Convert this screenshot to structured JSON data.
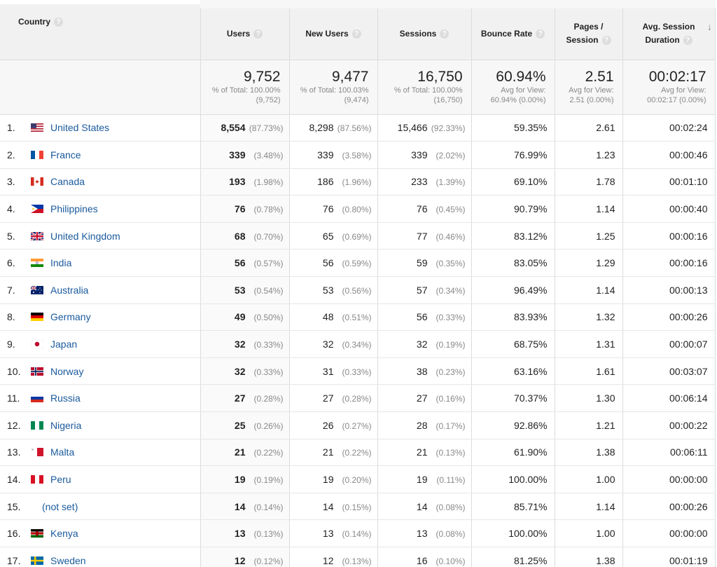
{
  "headers": {
    "country": "Country",
    "users": "Users",
    "new_users": "New Users",
    "sessions": "Sessions",
    "bounce_rate": "Bounce Rate",
    "pages_session_1": "Pages /",
    "pages_session_2": "Session",
    "avg_duration_1": "Avg. Session",
    "avg_duration_2": "Duration"
  },
  "totals": {
    "users": {
      "value": "9,752",
      "sub1": "% of Total: 100.00%",
      "sub2": "(9,752)"
    },
    "new_users": {
      "value": "9,477",
      "sub1": "% of Total: 100.03%",
      "sub2": "(9,474)"
    },
    "sessions": {
      "value": "16,750",
      "sub1": "% of Total: 100.00%",
      "sub2": "(16,750)"
    },
    "bounce_rate": {
      "value": "60.94%",
      "sub1": "Avg for View:",
      "sub2": "60.94% (0.00%)"
    },
    "pages_session": {
      "value": "2.51",
      "sub1": "Avg for View:",
      "sub2": "2.51 (0.00%)"
    },
    "avg_duration": {
      "value": "00:02:17",
      "sub1": "Avg for View:",
      "sub2": "00:02:17 (0.00%)"
    }
  },
  "rows": [
    {
      "rank": "1.",
      "flag": "us",
      "country": "United States",
      "users": "8,554",
      "users_pct": "(87.73%)",
      "new_users": "8,298",
      "new_users_pct": "(87.56%)",
      "sessions": "15,466",
      "sessions_pct": "(92.33%)",
      "bounce": "59.35%",
      "pages": "2.61",
      "duration": "00:02:24"
    },
    {
      "rank": "2.",
      "flag": "fr",
      "country": "France",
      "users": "339",
      "users_pct": "(3.48%)",
      "new_users": "339",
      "new_users_pct": "(3.58%)",
      "sessions": "339",
      "sessions_pct": "(2.02%)",
      "bounce": "76.99%",
      "pages": "1.23",
      "duration": "00:00:46"
    },
    {
      "rank": "3.",
      "flag": "ca",
      "country": "Canada",
      "users": "193",
      "users_pct": "(1.98%)",
      "new_users": "186",
      "new_users_pct": "(1.96%)",
      "sessions": "233",
      "sessions_pct": "(1.39%)",
      "bounce": "69.10%",
      "pages": "1.78",
      "duration": "00:01:10"
    },
    {
      "rank": "4.",
      "flag": "ph",
      "country": "Philippines",
      "users": "76",
      "users_pct": "(0.78%)",
      "new_users": "76",
      "new_users_pct": "(0.80%)",
      "sessions": "76",
      "sessions_pct": "(0.45%)",
      "bounce": "90.79%",
      "pages": "1.14",
      "duration": "00:00:40"
    },
    {
      "rank": "5.",
      "flag": "gb",
      "country": "United Kingdom",
      "users": "68",
      "users_pct": "(0.70%)",
      "new_users": "65",
      "new_users_pct": "(0.69%)",
      "sessions": "77",
      "sessions_pct": "(0.46%)",
      "bounce": "83.12%",
      "pages": "1.25",
      "duration": "00:00:16"
    },
    {
      "rank": "6.",
      "flag": "in",
      "country": "India",
      "users": "56",
      "users_pct": "(0.57%)",
      "new_users": "56",
      "new_users_pct": "(0.59%)",
      "sessions": "59",
      "sessions_pct": "(0.35%)",
      "bounce": "83.05%",
      "pages": "1.29",
      "duration": "00:00:16"
    },
    {
      "rank": "7.",
      "flag": "au",
      "country": "Australia",
      "users": "53",
      "users_pct": "(0.54%)",
      "new_users": "53",
      "new_users_pct": "(0.56%)",
      "sessions": "57",
      "sessions_pct": "(0.34%)",
      "bounce": "96.49%",
      "pages": "1.14",
      "duration": "00:00:13"
    },
    {
      "rank": "8.",
      "flag": "de",
      "country": "Germany",
      "users": "49",
      "users_pct": "(0.50%)",
      "new_users": "48",
      "new_users_pct": "(0.51%)",
      "sessions": "56",
      "sessions_pct": "(0.33%)",
      "bounce": "83.93%",
      "pages": "1.32",
      "duration": "00:00:26"
    },
    {
      "rank": "9.",
      "flag": "jp",
      "country": "Japan",
      "users": "32",
      "users_pct": "(0.33%)",
      "new_users": "32",
      "new_users_pct": "(0.34%)",
      "sessions": "32",
      "sessions_pct": "(0.19%)",
      "bounce": "68.75%",
      "pages": "1.31",
      "duration": "00:00:07"
    },
    {
      "rank": "10.",
      "flag": "no",
      "country": "Norway",
      "users": "32",
      "users_pct": "(0.33%)",
      "new_users": "31",
      "new_users_pct": "(0.33%)",
      "sessions": "38",
      "sessions_pct": "(0.23%)",
      "bounce": "63.16%",
      "pages": "1.61",
      "duration": "00:03:07"
    },
    {
      "rank": "11.",
      "flag": "ru",
      "country": "Russia",
      "users": "27",
      "users_pct": "(0.28%)",
      "new_users": "27",
      "new_users_pct": "(0.28%)",
      "sessions": "27",
      "sessions_pct": "(0.16%)",
      "bounce": "70.37%",
      "pages": "1.30",
      "duration": "00:06:14"
    },
    {
      "rank": "12.",
      "flag": "ng",
      "country": "Nigeria",
      "users": "25",
      "users_pct": "(0.26%)",
      "new_users": "26",
      "new_users_pct": "(0.27%)",
      "sessions": "28",
      "sessions_pct": "(0.17%)",
      "bounce": "92.86%",
      "pages": "1.21",
      "duration": "00:00:22"
    },
    {
      "rank": "13.",
      "flag": "mt",
      "country": "Malta",
      "users": "21",
      "users_pct": "(0.22%)",
      "new_users": "21",
      "new_users_pct": "(0.22%)",
      "sessions": "21",
      "sessions_pct": "(0.13%)",
      "bounce": "61.90%",
      "pages": "1.38",
      "duration": "00:06:11"
    },
    {
      "rank": "14.",
      "flag": "pe",
      "country": "Peru",
      "users": "19",
      "users_pct": "(0.19%)",
      "new_users": "19",
      "new_users_pct": "(0.20%)",
      "sessions": "19",
      "sessions_pct": "(0.11%)",
      "bounce": "100.00%",
      "pages": "1.00",
      "duration": "00:00:00"
    },
    {
      "rank": "15.",
      "flag": "",
      "country": "(not set)",
      "users": "14",
      "users_pct": "(0.14%)",
      "new_users": "14",
      "new_users_pct": "(0.15%)",
      "sessions": "14",
      "sessions_pct": "(0.08%)",
      "bounce": "85.71%",
      "pages": "1.14",
      "duration": "00:00:26"
    },
    {
      "rank": "16.",
      "flag": "ke",
      "country": "Kenya",
      "users": "13",
      "users_pct": "(0.13%)",
      "new_users": "13",
      "new_users_pct": "(0.14%)",
      "sessions": "13",
      "sessions_pct": "(0.08%)",
      "bounce": "100.00%",
      "pages": "1.00",
      "duration": "00:00:00"
    },
    {
      "rank": "17.",
      "flag": "se",
      "country": "Sweden",
      "users": "12",
      "users_pct": "(0.12%)",
      "new_users": "12",
      "new_users_pct": "(0.13%)",
      "sessions": "16",
      "sessions_pct": "(0.10%)",
      "bounce": "81.25%",
      "pages": "1.38",
      "duration": "00:01:19"
    }
  ],
  "colors": {
    "link": "#1a5a9c",
    "muted": "#888888",
    "header_bg": "#f1f1f1"
  }
}
